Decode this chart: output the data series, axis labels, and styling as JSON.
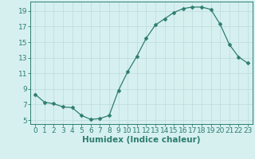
{
  "x": [
    0,
    1,
    2,
    3,
    4,
    5,
    6,
    7,
    8,
    9,
    10,
    11,
    12,
    13,
    14,
    15,
    16,
    17,
    18,
    19,
    20,
    21,
    22,
    23
  ],
  "y": [
    8.3,
    7.3,
    7.1,
    6.7,
    6.6,
    5.6,
    5.1,
    5.2,
    5.6,
    8.8,
    11.2,
    13.2,
    15.5,
    17.2,
    18.0,
    18.8,
    19.3,
    19.5,
    19.5,
    19.2,
    17.3,
    14.7,
    13.1,
    12.3
  ],
  "line_color": "#2e7d6e",
  "marker": "D",
  "marker_size": 2.5,
  "bg_color": "#d6f0f0",
  "grid_color": "#c0dede",
  "xlabel": "Humidex (Indice chaleur)",
  "xlim": [
    -0.5,
    23.5
  ],
  "ylim": [
    4.5,
    20.2
  ],
  "yticks": [
    5,
    7,
    9,
    11,
    13,
    15,
    17,
    19
  ],
  "xticks": [
    0,
    1,
    2,
    3,
    4,
    5,
    6,
    7,
    8,
    9,
    10,
    11,
    12,
    13,
    14,
    15,
    16,
    17,
    18,
    19,
    20,
    21,
    22,
    23
  ],
  "tick_fontsize": 6.5,
  "label_fontsize": 7.5
}
